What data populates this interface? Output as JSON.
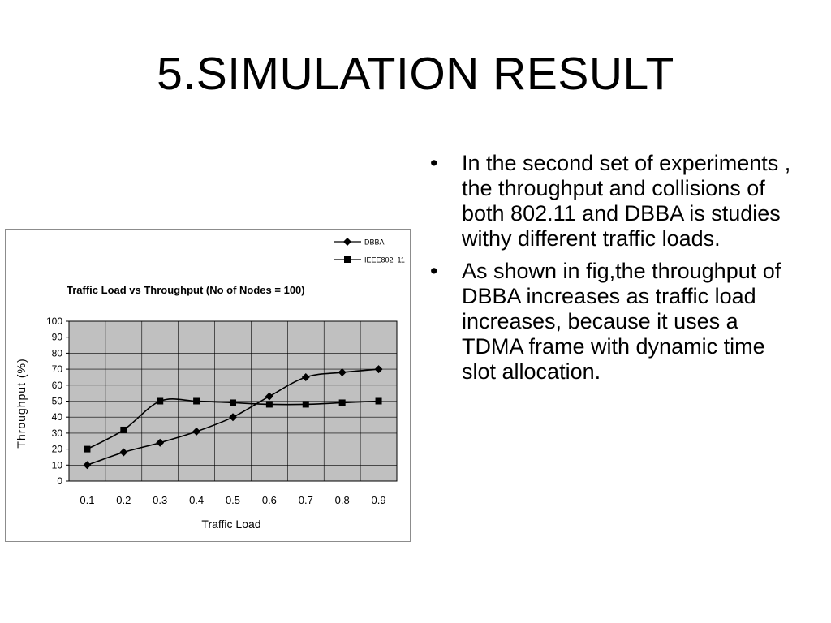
{
  "slide": {
    "title": "5.SIMULATION RESULT",
    "bullets": [
      "In the second set of experiments , the throughput and collisions of both 802.11 and DBBA is studies withy different traffic loads.",
      "As shown in fig,the throughput of DBBA increases as traffic load increases, because it uses a TDMA frame with dynamic time slot allocation."
    ],
    "bullet_symbol": "•"
  },
  "chart_data": {
    "type": "line",
    "title": "Traffic Load vs Throughput (No of Nodes = 100)",
    "xlabel": "Traffic Load",
    "ylabel": "Throughput (%)",
    "categories": [
      "0.1",
      "0.2",
      "0.3",
      "0.4",
      "0.5",
      "0.6",
      "0.7",
      "0.8",
      "0.9"
    ],
    "ylim": [
      0,
      100
    ],
    "yticks": [
      0,
      10,
      20,
      30,
      40,
      50,
      60,
      70,
      80,
      90,
      100
    ],
    "grid": true,
    "legend_position": "top-right",
    "series": [
      {
        "name": "DBBA",
        "marker": "diamond",
        "values": [
          10,
          18,
          24,
          31,
          40,
          53,
          65,
          68,
          70
        ]
      },
      {
        "name": "IEEE802_11",
        "marker": "square",
        "values": [
          20,
          32,
          50,
          50,
          49,
          48,
          48,
          49,
          50
        ]
      }
    ],
    "colors": {
      "plot_background": "#c0c0c0",
      "line": "#000000",
      "grid": "#000000"
    }
  }
}
